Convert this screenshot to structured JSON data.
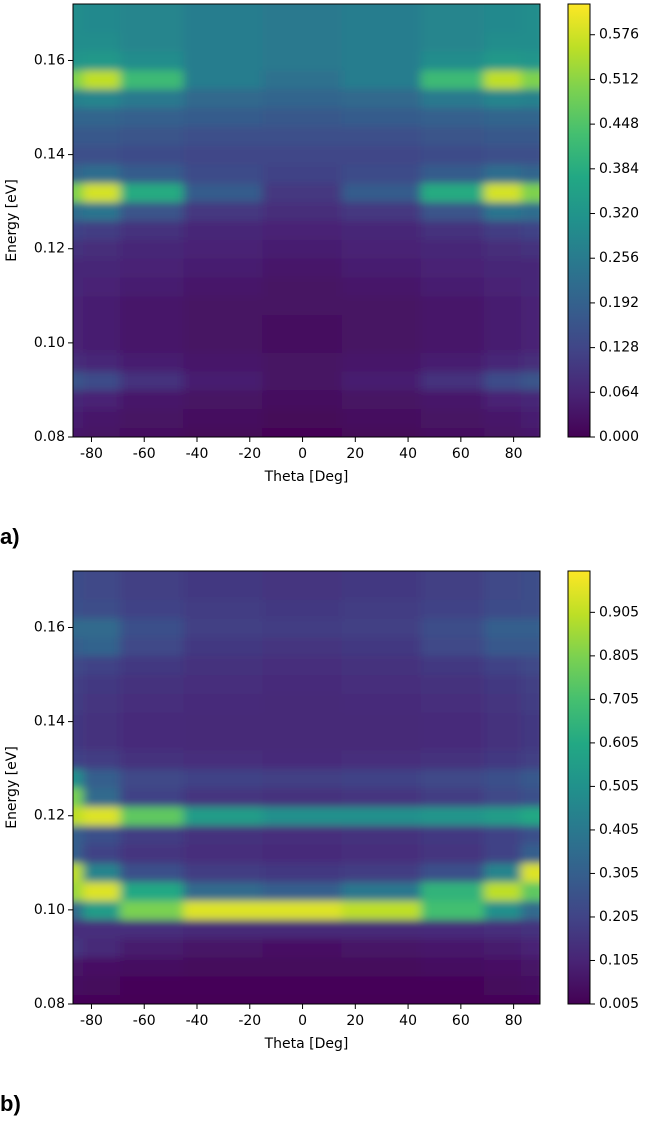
{
  "chart_data": [
    {
      "type": "heatmap",
      "colormap": "viridis",
      "panel_label": "a)",
      "xlabel": "Theta [Deg]",
      "ylabel": "Energy [eV]",
      "xlim": [
        -87,
        90
      ],
      "ylim": [
        0.08,
        0.172
      ],
      "xticks": [
        -80,
        -60,
        -40,
        -20,
        0,
        20,
        40,
        60,
        80
      ],
      "yticks": [
        0.08,
        {
          "value": 0.1,
          "label": "0.10"
        },
        0.12,
        0.14,
        0.16
      ],
      "clim": [
        0,
        0.62
      ],
      "cticks": [
        {
          "value": 0,
          "label": "0.000"
        },
        0.064,
        0.128,
        0.192,
        0.256,
        {
          "value": 0.32,
          "label": "0.320"
        },
        0.384,
        0.448,
        0.512,
        0.576
      ],
      "x": [
        -88,
        -78,
        -60,
        -30,
        0,
        30,
        60,
        78,
        88
      ],
      "y": [
        0.08,
        0.084,
        0.088,
        0.092,
        0.096,
        0.1,
        0.104,
        0.108,
        0.112,
        0.116,
        0.12,
        0.124,
        0.128,
        0.132,
        0.136,
        0.14,
        0.144,
        0.148,
        0.152,
        0.156,
        0.16,
        0.164,
        0.168,
        0.172
      ],
      "z": [
        [
          0.04,
          0.03,
          0.02,
          0.01,
          0.005,
          0.01,
          0.02,
          0.03,
          0.04
        ],
        [
          0.05,
          0.04,
          0.03,
          0.02,
          0.01,
          0.02,
          0.03,
          0.04,
          0.05
        ],
        [
          0.07,
          0.06,
          0.04,
          0.03,
          0.02,
          0.03,
          0.04,
          0.06,
          0.07
        ],
        [
          0.16,
          0.14,
          0.09,
          0.05,
          0.03,
          0.05,
          0.09,
          0.14,
          0.16
        ],
        [
          0.08,
          0.07,
          0.05,
          0.04,
          0.03,
          0.04,
          0.05,
          0.07,
          0.08
        ],
        [
          0.06,
          0.05,
          0.04,
          0.03,
          0.02,
          0.03,
          0.04,
          0.05,
          0.06
        ],
        [
          0.06,
          0.05,
          0.04,
          0.03,
          0.02,
          0.03,
          0.04,
          0.05,
          0.06
        ],
        [
          0.06,
          0.05,
          0.04,
          0.03,
          0.03,
          0.03,
          0.04,
          0.05,
          0.06
        ],
        [
          0.07,
          0.06,
          0.05,
          0.04,
          0.03,
          0.04,
          0.05,
          0.06,
          0.07
        ],
        [
          0.07,
          0.07,
          0.06,
          0.05,
          0.04,
          0.05,
          0.06,
          0.07,
          0.07
        ],
        [
          0.09,
          0.08,
          0.07,
          0.06,
          0.05,
          0.06,
          0.07,
          0.08,
          0.09
        ],
        [
          0.12,
          0.11,
          0.09,
          0.07,
          0.06,
          0.07,
          0.09,
          0.11,
          0.12
        ],
        [
          0.22,
          0.24,
          0.16,
          0.1,
          0.08,
          0.1,
          0.16,
          0.24,
          0.22
        ],
        [
          0.5,
          0.58,
          0.38,
          0.18,
          0.1,
          0.18,
          0.38,
          0.58,
          0.5
        ],
        [
          0.2,
          0.22,
          0.18,
          0.14,
          0.12,
          0.14,
          0.18,
          0.22,
          0.2
        ],
        [
          0.15,
          0.15,
          0.14,
          0.13,
          0.13,
          0.13,
          0.14,
          0.15,
          0.15
        ],
        [
          0.17,
          0.17,
          0.16,
          0.15,
          0.15,
          0.15,
          0.16,
          0.17,
          0.17
        ],
        [
          0.2,
          0.2,
          0.19,
          0.18,
          0.17,
          0.18,
          0.19,
          0.2,
          0.2
        ],
        [
          0.27,
          0.28,
          0.25,
          0.21,
          0.2,
          0.21,
          0.25,
          0.28,
          0.27
        ],
        [
          0.5,
          0.56,
          0.42,
          0.26,
          0.23,
          0.26,
          0.42,
          0.56,
          0.5
        ],
        [
          0.32,
          0.33,
          0.3,
          0.26,
          0.25,
          0.26,
          0.3,
          0.33,
          0.32
        ],
        [
          0.3,
          0.3,
          0.28,
          0.26,
          0.25,
          0.26,
          0.28,
          0.3,
          0.3
        ],
        [
          0.3,
          0.29,
          0.28,
          0.26,
          0.25,
          0.26,
          0.28,
          0.29,
          0.3
        ],
        [
          0.3,
          0.29,
          0.28,
          0.26,
          0.25,
          0.26,
          0.28,
          0.29,
          0.3
        ]
      ]
    },
    {
      "type": "heatmap",
      "colormap": "viridis",
      "panel_label": "b)",
      "xlabel": "Theta [Deg]",
      "ylabel": "Energy [eV]",
      "xlim": [
        -87,
        90
      ],
      "ylim": [
        0.08,
        0.172
      ],
      "xticks": [
        -80,
        -60,
        -40,
        -20,
        0,
        20,
        40,
        60,
        80
      ],
      "yticks": [
        0.08,
        {
          "value": 0.1,
          "label": "0.10"
        },
        0.12,
        0.14,
        0.16
      ],
      "clim": [
        0.005,
        1.0
      ],
      "cticks": [
        0.005,
        0.105,
        0.205,
        0.305,
        0.405,
        0.505,
        0.605,
        0.705,
        0.805,
        0.905
      ],
      "x": [
        -88,
        -78,
        -60,
        -30,
        0,
        30,
        60,
        78,
        88
      ],
      "y": [
        0.08,
        0.084,
        0.088,
        0.092,
        0.096,
        0.1,
        0.104,
        0.108,
        0.112,
        0.116,
        0.12,
        0.124,
        0.128,
        0.132,
        0.136,
        0.14,
        0.144,
        0.148,
        0.152,
        0.156,
        0.16,
        0.164,
        0.168,
        0.172
      ],
      "z": [
        [
          0.02,
          0.02,
          0.01,
          0.01,
          0.01,
          0.01,
          0.01,
          0.02,
          0.02
        ],
        [
          0.04,
          0.03,
          0.02,
          0.02,
          0.02,
          0.02,
          0.02,
          0.03,
          0.04
        ],
        [
          0.06,
          0.05,
          0.04,
          0.03,
          0.03,
          0.03,
          0.04,
          0.05,
          0.06
        ],
        [
          0.16,
          0.12,
          0.08,
          0.06,
          0.05,
          0.06,
          0.07,
          0.08,
          0.1
        ],
        [
          0.14,
          0.14,
          0.14,
          0.12,
          0.12,
          0.12,
          0.13,
          0.14,
          0.15
        ],
        [
          0.35,
          0.55,
          0.8,
          0.95,
          0.95,
          0.9,
          0.7,
          0.5,
          0.35
        ],
        [
          0.85,
          0.95,
          0.6,
          0.35,
          0.3,
          0.4,
          0.65,
          0.9,
          0.75
        ],
        [
          0.9,
          0.45,
          0.25,
          0.18,
          0.17,
          0.18,
          0.25,
          0.45,
          0.95
        ],
        [
          0.3,
          0.2,
          0.16,
          0.14,
          0.13,
          0.14,
          0.16,
          0.2,
          0.3
        ],
        [
          0.3,
          0.25,
          0.18,
          0.15,
          0.14,
          0.15,
          0.17,
          0.2,
          0.25
        ],
        [
          0.9,
          0.95,
          0.75,
          0.55,
          0.5,
          0.5,
          0.52,
          0.55,
          0.6
        ],
        [
          0.8,
          0.35,
          0.2,
          0.16,
          0.15,
          0.16,
          0.18,
          0.22,
          0.25
        ],
        [
          0.5,
          0.3,
          0.22,
          0.2,
          0.19,
          0.2,
          0.22,
          0.25,
          0.28
        ],
        [
          0.2,
          0.18,
          0.15,
          0.14,
          0.13,
          0.14,
          0.15,
          0.17,
          0.19
        ],
        [
          0.17,
          0.15,
          0.13,
          0.12,
          0.12,
          0.12,
          0.13,
          0.15,
          0.17
        ],
        [
          0.17,
          0.15,
          0.13,
          0.12,
          0.12,
          0.12,
          0.13,
          0.15,
          0.17
        ],
        [
          0.18,
          0.16,
          0.14,
          0.13,
          0.12,
          0.13,
          0.14,
          0.16,
          0.18
        ],
        [
          0.19,
          0.17,
          0.15,
          0.14,
          0.13,
          0.14,
          0.15,
          0.17,
          0.19
        ],
        [
          0.22,
          0.2,
          0.17,
          0.15,
          0.14,
          0.15,
          0.17,
          0.2,
          0.22
        ],
        [
          0.3,
          0.32,
          0.22,
          0.17,
          0.16,
          0.17,
          0.22,
          0.28,
          0.28
        ],
        [
          0.35,
          0.35,
          0.25,
          0.19,
          0.18,
          0.19,
          0.24,
          0.3,
          0.3
        ],
        [
          0.25,
          0.24,
          0.2,
          0.18,
          0.17,
          0.18,
          0.2,
          0.23,
          0.24
        ],
        [
          0.24,
          0.22,
          0.19,
          0.17,
          0.16,
          0.17,
          0.19,
          0.22,
          0.24
        ],
        [
          0.24,
          0.22,
          0.19,
          0.17,
          0.16,
          0.17,
          0.19,
          0.22,
          0.24
        ]
      ]
    }
  ]
}
